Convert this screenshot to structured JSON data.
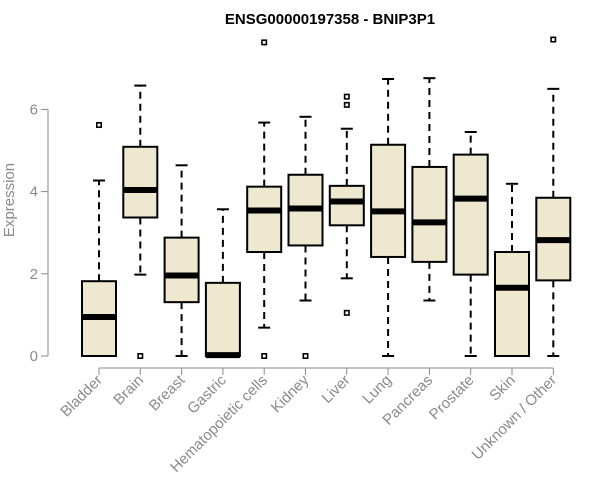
{
  "chart_data": {
    "type": "boxplot",
    "title": "ENSG00000197358 - BNIP3P1",
    "xlabel": "",
    "ylabel": "Expression",
    "ylim": [
      0,
      7.9
    ],
    "yticks": [
      0,
      2,
      4,
      6
    ],
    "grid": false,
    "legend": "none",
    "box_fill": "#efe8d0",
    "categories": [
      "Bladder",
      "Brain",
      "Breast",
      "Gastric",
      "Hematopoietic cells",
      "Kidney",
      "Liver",
      "Lung",
      "Pancreas",
      "Prostate",
      "Skin",
      "Unknown / Other"
    ],
    "boxes": [
      {
        "label": "Bladder",
        "whisker_low": 0.0,
        "q1": 0.0,
        "median": 0.95,
        "q3": 1.82,
        "whisker_high": 4.27,
        "outliers": [
          5.62
        ]
      },
      {
        "label": "Brain",
        "whisker_low": 1.98,
        "q1": 3.37,
        "median": 4.04,
        "q3": 5.09,
        "whisker_high": 6.58,
        "outliers": [
          0.0
        ]
      },
      {
        "label": "Breast",
        "whisker_low": 0.0,
        "q1": 1.31,
        "median": 1.96,
        "q3": 2.88,
        "whisker_high": 4.64,
        "outliers": []
      },
      {
        "label": "Gastric",
        "whisker_low": 0.0,
        "q1": 0.0,
        "median": 0.02,
        "q3": 1.78,
        "whisker_high": 3.57,
        "outliers": []
      },
      {
        "label": "Hematopoietic cells",
        "whisker_low": 0.69,
        "q1": 2.53,
        "median": 3.54,
        "q3": 4.12,
        "whisker_high": 5.68,
        "outliers": [
          0.0,
          7.63
        ]
      },
      {
        "label": "Kidney",
        "whisker_low": 1.35,
        "q1": 2.69,
        "median": 3.59,
        "q3": 4.41,
        "whisker_high": 5.82,
        "outliers": [
          0.0
        ]
      },
      {
        "label": "Liver",
        "whisker_low": 1.89,
        "q1": 3.18,
        "median": 3.76,
        "q3": 4.14,
        "whisker_high": 5.53,
        "outliers": [
          1.05,
          6.11,
          6.31
        ]
      },
      {
        "label": "Lung",
        "whisker_low": 0.0,
        "q1": 2.41,
        "median": 3.52,
        "q3": 5.14,
        "whisker_high": 6.74,
        "outliers": []
      },
      {
        "label": "Pancreas",
        "whisker_low": 1.35,
        "q1": 2.29,
        "median": 3.25,
        "q3": 4.6,
        "whisker_high": 6.76,
        "outliers": []
      },
      {
        "label": "Prostate",
        "whisker_low": 0.0,
        "q1": 1.98,
        "median": 3.83,
        "q3": 4.9,
        "whisker_high": 5.45,
        "outliers": []
      },
      {
        "label": "Skin",
        "whisker_low": 0.0,
        "q1": 0.0,
        "median": 1.66,
        "q3": 2.53,
        "whisker_high": 4.19,
        "outliers": []
      },
      {
        "label": "Unknown / Other",
        "whisker_low": 0.0,
        "q1": 1.84,
        "median": 2.82,
        "q3": 3.85,
        "whisker_high": 6.5,
        "outliers": [
          7.7
        ]
      }
    ]
  }
}
